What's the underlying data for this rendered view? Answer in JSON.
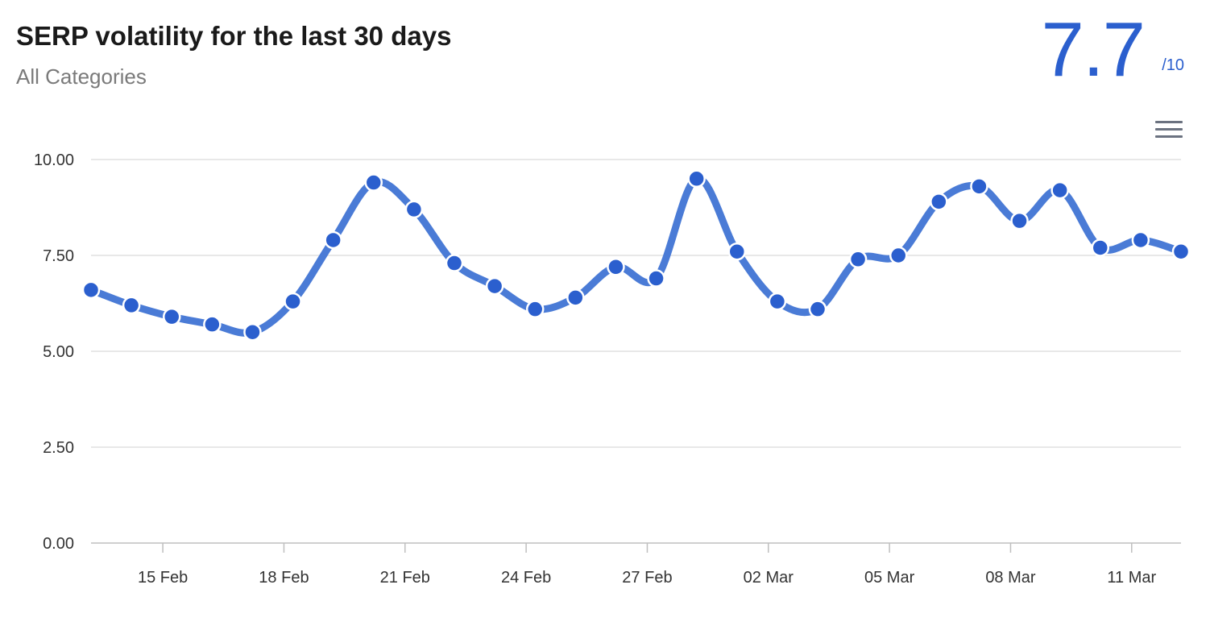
{
  "header": {
    "title": "SERP volatility for the last 30 days",
    "subtitle": "All Categories",
    "score_value": "7.7",
    "score_denominator": "/10"
  },
  "menu": {
    "icon": "hamburger-menu-icon"
  },
  "colors": {
    "accent": "#2b5fce",
    "line": "#4a7bd6",
    "grid": "#d9d9d9",
    "text": "#333333"
  },
  "chart_data": {
    "type": "line",
    "title": "SERP volatility for the last 30 days",
    "subtitle": "All Categories",
    "xlabel": "",
    "ylabel": "",
    "ylim": [
      0,
      10
    ],
    "yticks": [
      "0.00",
      "2.50",
      "5.00",
      "7.50",
      "10.00"
    ],
    "xticks": [
      "15 Feb",
      "18 Feb",
      "21 Feb",
      "24 Feb",
      "27 Feb",
      "02 Mar",
      "05 Mar",
      "08 Mar",
      "11 Mar"
    ],
    "grid": true,
    "series": [
      {
        "x": [
          "14 Feb",
          "15 Feb",
          "16 Feb",
          "17 Feb",
          "18 Feb",
          "19 Feb",
          "20 Feb",
          "21 Feb",
          "22 Feb",
          "23 Feb",
          "24 Feb",
          "25 Feb",
          "26 Feb",
          "27 Feb",
          "28 Feb",
          "01 Mar",
          "02 Mar",
          "03 Mar",
          "04 Mar",
          "05 Mar",
          "06 Mar",
          "07 Mar",
          "08 Mar",
          "09 Mar",
          "10 Mar",
          "11 Mar",
          "12 Mar",
          "13 Mar"
        ],
        "values": [
          6.6,
          6.2,
          5.9,
          5.7,
          5.5,
          6.3,
          7.9,
          9.4,
          8.7,
          7.3,
          6.7,
          6.1,
          6.4,
          7.2,
          6.9,
          9.5,
          7.6,
          6.3,
          6.1,
          7.4,
          7.5,
          8.9,
          9.3,
          8.4,
          9.2,
          7.7,
          7.9,
          7.6
        ]
      }
    ]
  }
}
